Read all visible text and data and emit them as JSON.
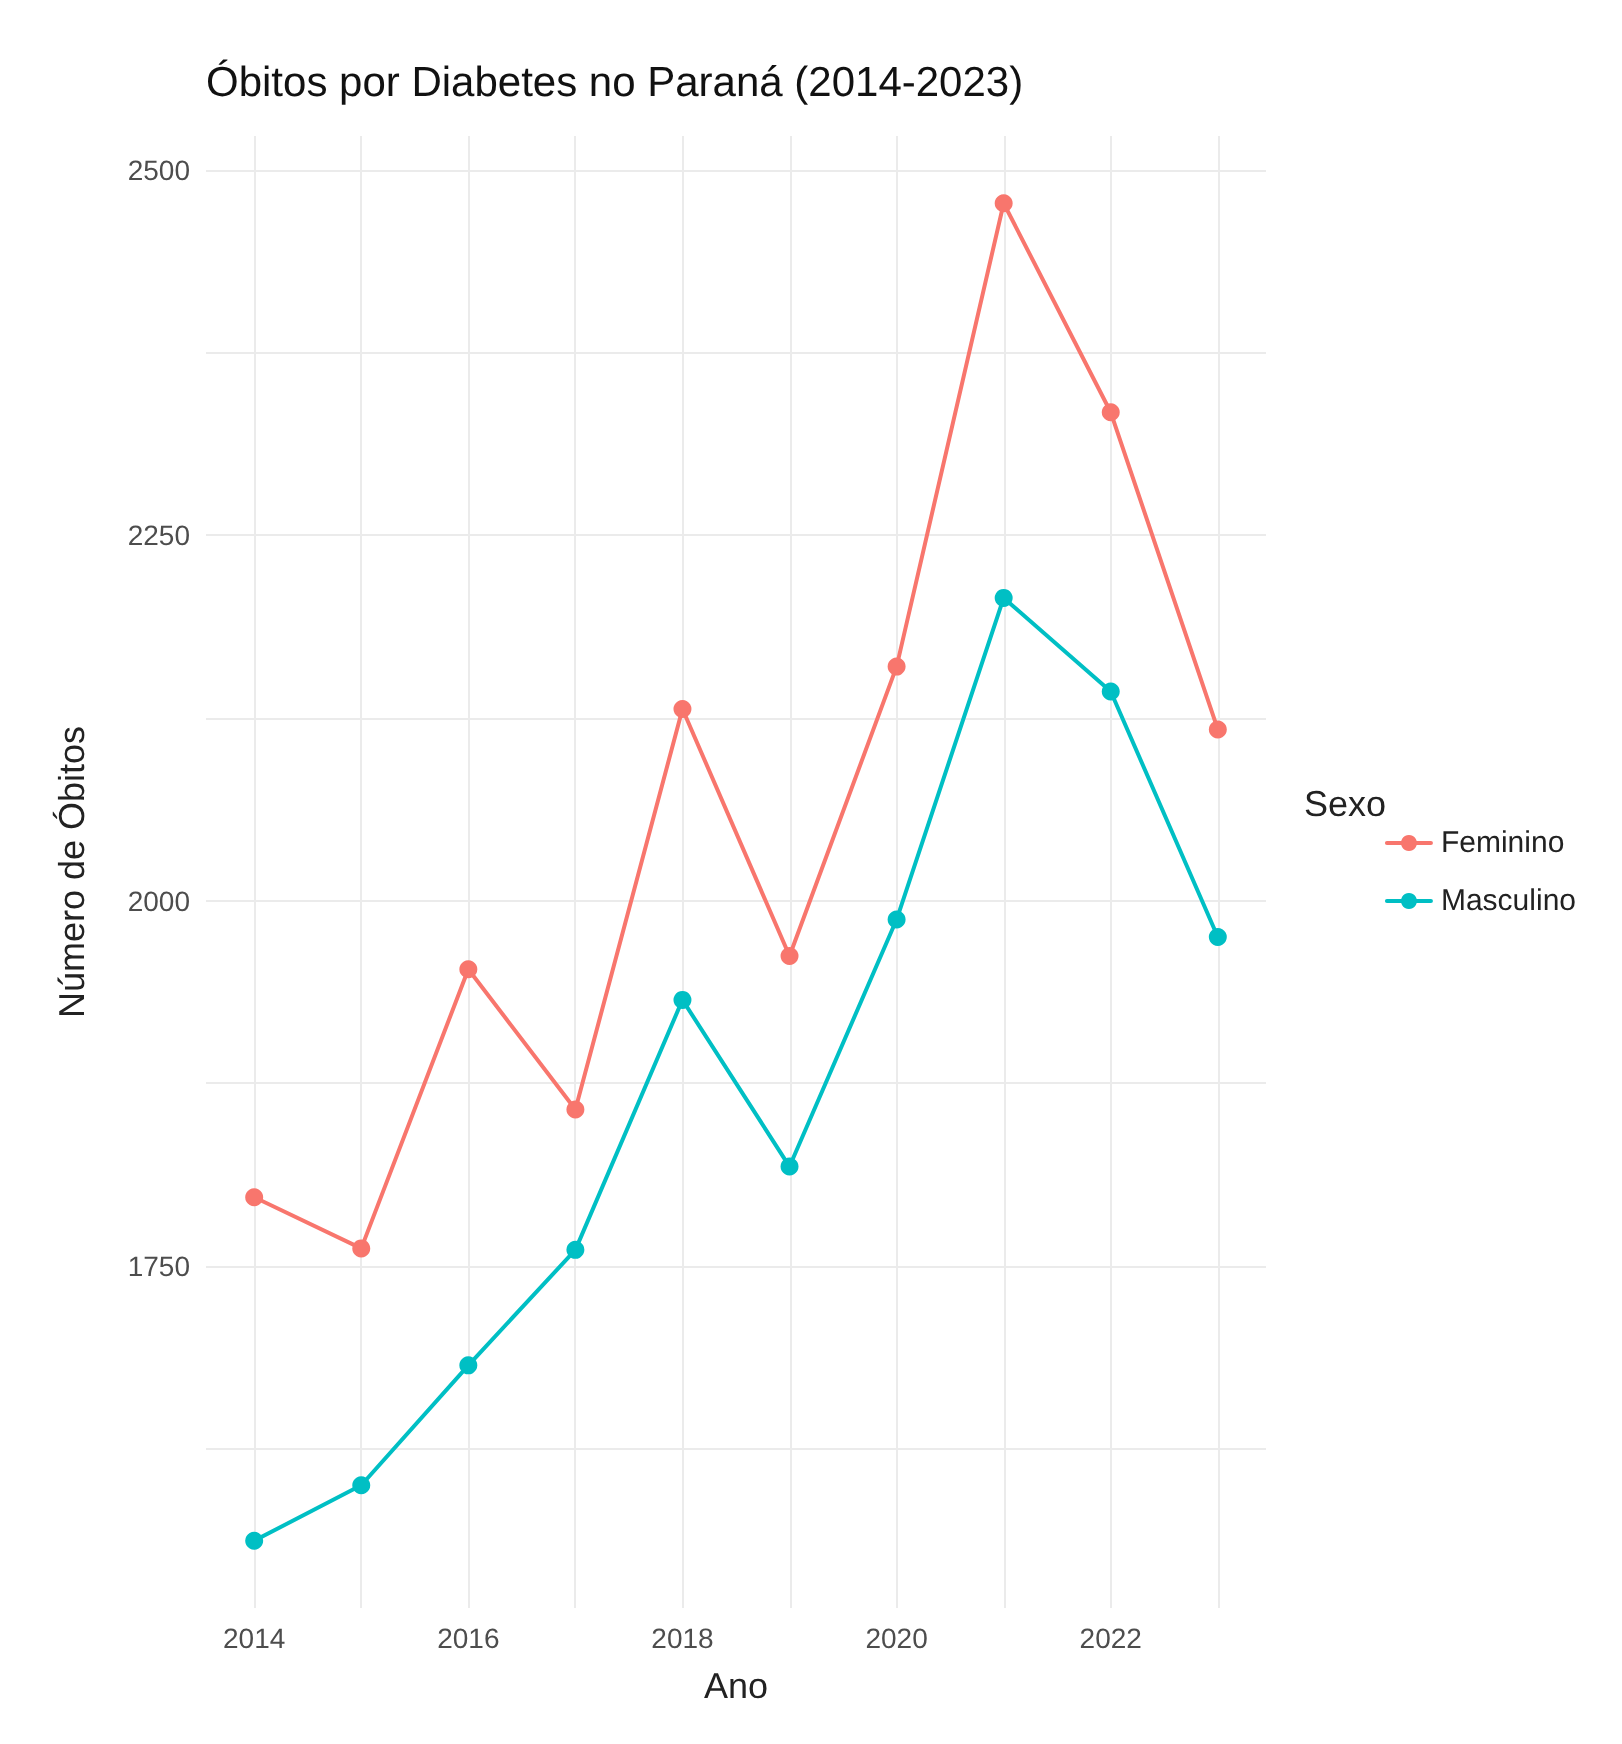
{
  "chart_data": {
    "type": "line",
    "title": "Óbitos por Diabetes no Paraná (2014-2023)",
    "xlabel": "Ano",
    "ylabel": "Número de Óbitos",
    "legend_title": "Sexo",
    "legend": "right",
    "grid": true,
    "marker": "circle",
    "line_style": "solid",
    "x": [
      2014,
      2015,
      2016,
      2017,
      2018,
      2019,
      2020,
      2021,
      2022,
      2023
    ],
    "xlim": [
      2013.55,
      2023.45
    ],
    "xticks": [
      2014,
      {
        "value": 2015,
        "label": null
      },
      2016,
      {
        "value": 2017,
        "label": null
      },
      2018,
      {
        "value": 2019,
        "label": null
      },
      2020,
      {
        "value": 2021,
        "label": null
      },
      2022,
      {
        "value": 2023,
        "label": null
      }
    ],
    "ylim": [
      1516,
      2523
    ],
    "yticks": [
      {
        "value": 1625,
        "label": null
      },
      1750,
      {
        "value": 1875,
        "label": null
      },
      2000,
      {
        "value": 2125,
        "label": null
      },
      2250,
      {
        "value": 2375,
        "label": null
      },
      2500
    ],
    "series": [
      {
        "name": "Feminino",
        "color": "#f8766d",
        "values": [
          1797,
          1762,
          1953,
          1857,
          2131,
          1962,
          2160,
          2477,
          2334,
          2117
        ]
      },
      {
        "name": "Masculino",
        "color": "#00bfc4",
        "values": [
          1562,
          1600,
          1682,
          1761,
          1932,
          1818,
          1987,
          2207,
          2143,
          1975
        ]
      }
    ]
  }
}
